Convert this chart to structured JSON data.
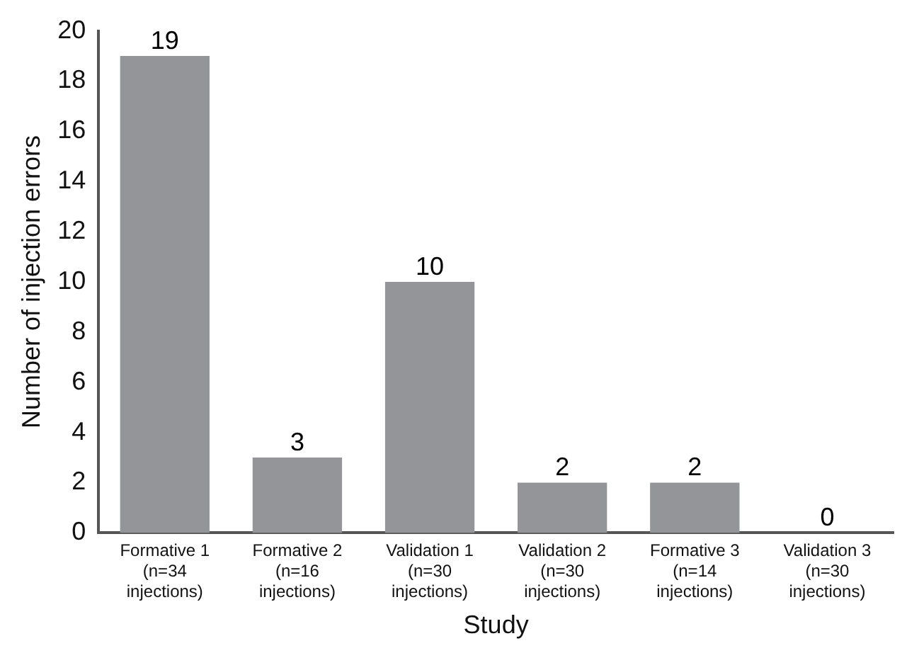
{
  "chart_data": {
    "type": "bar",
    "xlabel": "Study",
    "ylabel": "Number of injection errors",
    "categories": [
      "Formative 1\n(n=34\ninjections)",
      "Formative 2\n(n=16\ninjections)",
      "Validation 1\n(n=30\ninjections)",
      "Validation 2\n(n=30\ninjections)",
      "Formative 3\n(n=14\ninjections)",
      "Validation 3\n(n=30\ninjections)"
    ],
    "values": [
      19,
      3,
      10,
      2,
      2,
      0
    ],
    "color": "#939598",
    "ylim": [
      0,
      20
    ],
    "yticks": [
      0,
      2,
      4,
      6,
      8,
      10,
      12,
      14,
      16,
      18,
      20
    ],
    "grid": false,
    "legend": false,
    "data_labels": true
  }
}
